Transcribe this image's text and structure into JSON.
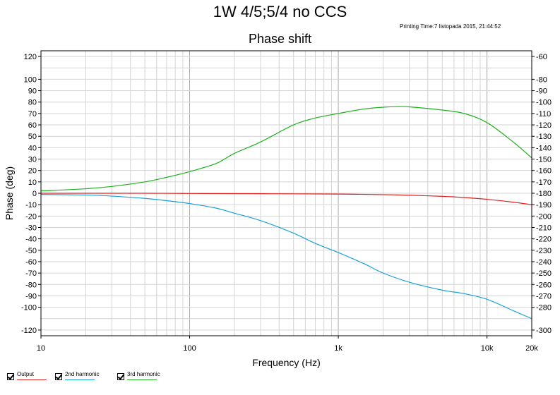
{
  "header": {
    "title": "1W 4/5;5/4 no CCS",
    "print_time": "Printing Time:7 listopada 2015, 21:44:52"
  },
  "chart_data": {
    "type": "line",
    "title": "Phase shift",
    "xlabel": "Frequency (Hz)",
    "ylabel": "Phase (deg)",
    "x_scale": "log",
    "xlim": [
      10,
      20000
    ],
    "ylim": [
      -125,
      125
    ],
    "y2lim": [
      -305,
      -55
    ],
    "grid": true,
    "x_ticks": [
      {
        "value": 10,
        "label": "10"
      },
      {
        "value": 100,
        "label": "100"
      },
      {
        "value": 1000,
        "label": "1k"
      },
      {
        "value": 10000,
        "label": "10k"
      },
      {
        "value": 20000,
        "label": "20k"
      }
    ],
    "y_ticks": [
      {
        "value": 120,
        "label": "120"
      },
      {
        "value": 100,
        "label": "100"
      },
      {
        "value": 90,
        "label": "90"
      },
      {
        "value": 80,
        "label": "80"
      },
      {
        "value": 70,
        "label": "70"
      },
      {
        "value": 60,
        "label": "60"
      },
      {
        "value": 50,
        "label": "50"
      },
      {
        "value": 40,
        "label": "40"
      },
      {
        "value": 30,
        "label": "30"
      },
      {
        "value": 20,
        "label": "20"
      },
      {
        "value": 10,
        "label": "10"
      },
      {
        "value": 0,
        "label": "0"
      },
      {
        "value": -10,
        "label": "-10"
      },
      {
        "value": -20,
        "label": "-20"
      },
      {
        "value": -30,
        "label": "-30"
      },
      {
        "value": -40,
        "label": "-40"
      },
      {
        "value": -50,
        "label": "-50"
      },
      {
        "value": -60,
        "label": "-60"
      },
      {
        "value": -70,
        "label": "-70"
      },
      {
        "value": -80,
        "label": "-80"
      },
      {
        "value": -90,
        "label": "-90"
      },
      {
        "value": -100,
        "label": "-100"
      },
      {
        "value": -120,
        "label": "-120"
      }
    ],
    "y2_ticks": [
      {
        "value": -60,
        "label": "-60"
      },
      {
        "value": -80,
        "label": "-80"
      },
      {
        "value": -90,
        "label": "-90"
      },
      {
        "value": -100,
        "label": "-100"
      },
      {
        "value": -110,
        "label": "-110"
      },
      {
        "value": -120,
        "label": "-120"
      },
      {
        "value": -130,
        "label": "-130"
      },
      {
        "value": -140,
        "label": "-140"
      },
      {
        "value": -150,
        "label": "-150"
      },
      {
        "value": -160,
        "label": "-160"
      },
      {
        "value": -170,
        "label": "-170"
      },
      {
        "value": -180,
        "label": "-180"
      },
      {
        "value": -190,
        "label": "-190"
      },
      {
        "value": -200,
        "label": "-200"
      },
      {
        "value": -210,
        "label": "-210"
      },
      {
        "value": -220,
        "label": "-220"
      },
      {
        "value": -230,
        "label": "-230"
      },
      {
        "value": -240,
        "label": "-240"
      },
      {
        "value": -250,
        "label": "-250"
      },
      {
        "value": -260,
        "label": "-260"
      },
      {
        "value": -270,
        "label": "-270"
      },
      {
        "value": -280,
        "label": "-280"
      },
      {
        "value": -300,
        "label": "-300"
      }
    ],
    "series": [
      {
        "name": "Output",
        "color": "#e02020",
        "x": [
          10,
          20,
          50,
          100,
          200,
          500,
          1000,
          2000,
          3000,
          5000,
          7000,
          10000,
          15000,
          20000
        ],
        "y": [
          0,
          0,
          0,
          -0.2,
          -0.3,
          -0.5,
          -0.7,
          -1.2,
          -1.7,
          -2.7,
          -3.7,
          -5.3,
          -7.8,
          -10.0
        ]
      },
      {
        "name": "2nd harmonic",
        "color": "#1aa0d8",
        "x": [
          10,
          20,
          30,
          50,
          70,
          100,
          150,
          200,
          300,
          500,
          700,
          1000,
          1500,
          2000,
          3000,
          5000,
          7000,
          10000,
          15000,
          20000
        ],
        "y": [
          -1,
          -1.5,
          -2.5,
          -4.5,
          -6.5,
          -9,
          -13,
          -17.5,
          -24,
          -35,
          -44,
          -52,
          -62,
          -70,
          -78,
          -85,
          -88,
          -93,
          -103,
          -110
        ]
      },
      {
        "name": "3rd harmonic",
        "color": "#20b020",
        "x": [
          10,
          20,
          30,
          50,
          70,
          100,
          150,
          200,
          300,
          500,
          700,
          1000,
          1500,
          2000,
          2500,
          3000,
          5000,
          7000,
          10000,
          15000,
          20000
        ],
        "y": [
          2,
          4,
          6,
          10,
          14,
          19,
          26,
          35,
          45,
          60,
          66,
          70,
          74,
          75.5,
          76,
          75.8,
          73,
          70,
          62,
          45,
          31
        ]
      }
    ]
  },
  "legend": {
    "items": [
      {
        "label": "Output",
        "color": "#e02020"
      },
      {
        "label": "2nd harmonic",
        "color": "#1aa0d8"
      },
      {
        "label": "3rd harmonic",
        "color": "#20b020"
      }
    ]
  }
}
